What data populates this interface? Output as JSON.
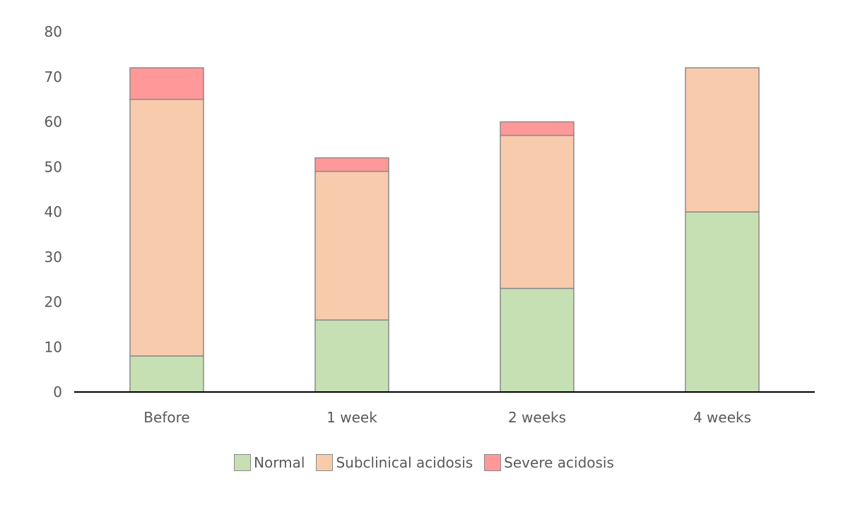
{
  "chart_data": {
    "type": "bar",
    "stacked": true,
    "categories": [
      "Before",
      "1 week",
      "2 weeks",
      "4 weeks"
    ],
    "series": [
      {
        "name": "Normal",
        "values": [
          8,
          16,
          23,
          40
        ],
        "color": "#c6e0b4"
      },
      {
        "name": "Subclinical acidosis",
        "values": [
          57,
          33,
          34,
          32
        ],
        "color": "#f8cbad"
      },
      {
        "name": "Severe acidosis",
        "values": [
          7,
          3,
          3,
          0
        ],
        "color": "#ff9999"
      }
    ],
    "title": "",
    "xlabel": "",
    "ylabel": "",
    "ylim": [
      0,
      80
    ],
    "yticks": [
      "0",
      "10",
      "20",
      "30",
      "40",
      "50",
      "60",
      "70",
      "80"
    ],
    "grid": false,
    "legend": "bottom",
    "colors": {
      "bar_edge": "#8a8a8a",
      "axis": "#000000",
      "text": "#595959"
    }
  }
}
